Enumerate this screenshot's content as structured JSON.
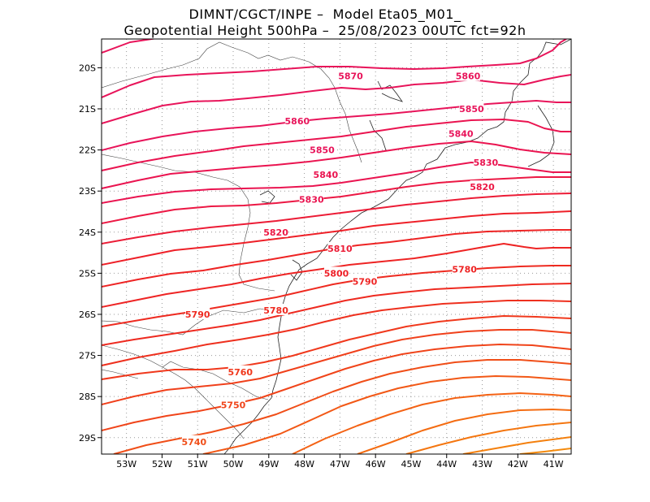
{
  "title_line1": "DIMNT/CGCT/INPE –  Model Eta05_M01_",
  "title_line2": "Geopotential Height 500hPa –  25/08/2023 00UTC fct=92h",
  "map": {
    "lon_range": [
      -53.7,
      -40.5
    ],
    "lat_range": [
      -29.4,
      -19.3
    ],
    "lon_ticks": [
      {
        "v": -53,
        "label": "53W"
      },
      {
        "v": -52,
        "label": "52W"
      },
      {
        "v": -51,
        "label": "51W"
      },
      {
        "v": -50,
        "label": "50W"
      },
      {
        "v": -49,
        "label": "49W"
      },
      {
        "v": -48,
        "label": "48W"
      },
      {
        "v": -47,
        "label": "47W"
      },
      {
        "v": -46,
        "label": "46W"
      },
      {
        "v": -45,
        "label": "45W"
      },
      {
        "v": -44,
        "label": "44W"
      },
      {
        "v": -43,
        "label": "43W"
      },
      {
        "v": -42,
        "label": "42W"
      },
      {
        "v": -41,
        "label": "41W"
      }
    ],
    "lat_ticks": [
      {
        "v": -20,
        "label": "20S"
      },
      {
        "v": -21,
        "label": "21S"
      },
      {
        "v": -22,
        "label": "22S"
      },
      {
        "v": -23,
        "label": "23S"
      },
      {
        "v": -24,
        "label": "24S"
      },
      {
        "v": -25,
        "label": "25S"
      },
      {
        "v": -26,
        "label": "26S"
      },
      {
        "v": -27,
        "label": "27S"
      },
      {
        "v": -28,
        "label": "28S"
      },
      {
        "v": -29,
        "label": "29S"
      }
    ],
    "contour_labels": [
      {
        "text": "5870",
        "lon": -46.7,
        "lat": -20.2,
        "color": "#e8145a"
      },
      {
        "text": "5860",
        "lon": -43.4,
        "lat": -20.2,
        "color": "#e8145a"
      },
      {
        "text": "5860",
        "lon": -48.2,
        "lat": -21.3,
        "color": "#e8145a"
      },
      {
        "text": "5850",
        "lon": -43.3,
        "lat": -21.0,
        "color": "#e8145a"
      },
      {
        "text": "5850",
        "lon": -47.5,
        "lat": -22.0,
        "color": "#e8145a"
      },
      {
        "text": "5840",
        "lon": -43.6,
        "lat": -21.6,
        "color": "#e8145a"
      },
      {
        "text": "5840",
        "lon": -47.4,
        "lat": -22.6,
        "color": "#ea1450"
      },
      {
        "text": "5830",
        "lon": -42.9,
        "lat": -22.3,
        "color": "#ea1450"
      },
      {
        "text": "5830",
        "lon": -47.8,
        "lat": -23.2,
        "color": "#ea1450"
      },
      {
        "text": "5820",
        "lon": -43.0,
        "lat": -22.9,
        "color": "#ec1844"
      },
      {
        "text": "5820",
        "lon": -48.8,
        "lat": -24.0,
        "color": "#ec1844"
      },
      {
        "text": "5810",
        "lon": -47.0,
        "lat": -24.4,
        "color": "#ec1c36"
      },
      {
        "text": "5800",
        "lon": -47.1,
        "lat": -25.0,
        "color": "#ee2028"
      },
      {
        "text": "5790",
        "lon": -46.3,
        "lat": -25.2,
        "color": "#ee2424"
      },
      {
        "text": "5780",
        "lon": -43.5,
        "lat": -24.9,
        "color": "#ee2424"
      },
      {
        "text": "5790",
        "lon": -51.0,
        "lat": -26.0,
        "color": "#ee2a20"
      },
      {
        "text": "5780",
        "lon": -48.8,
        "lat": -25.9,
        "color": "#ee2a20"
      },
      {
        "text": "5760",
        "lon": -49.8,
        "lat": -27.4,
        "color": "#f0381c"
      },
      {
        "text": "5750",
        "lon": -50.0,
        "lat": -28.2,
        "color": "#f0441a"
      },
      {
        "text": "5740",
        "lon": -51.1,
        "lat": -29.1,
        "color": "#f04e18"
      }
    ]
  }
}
